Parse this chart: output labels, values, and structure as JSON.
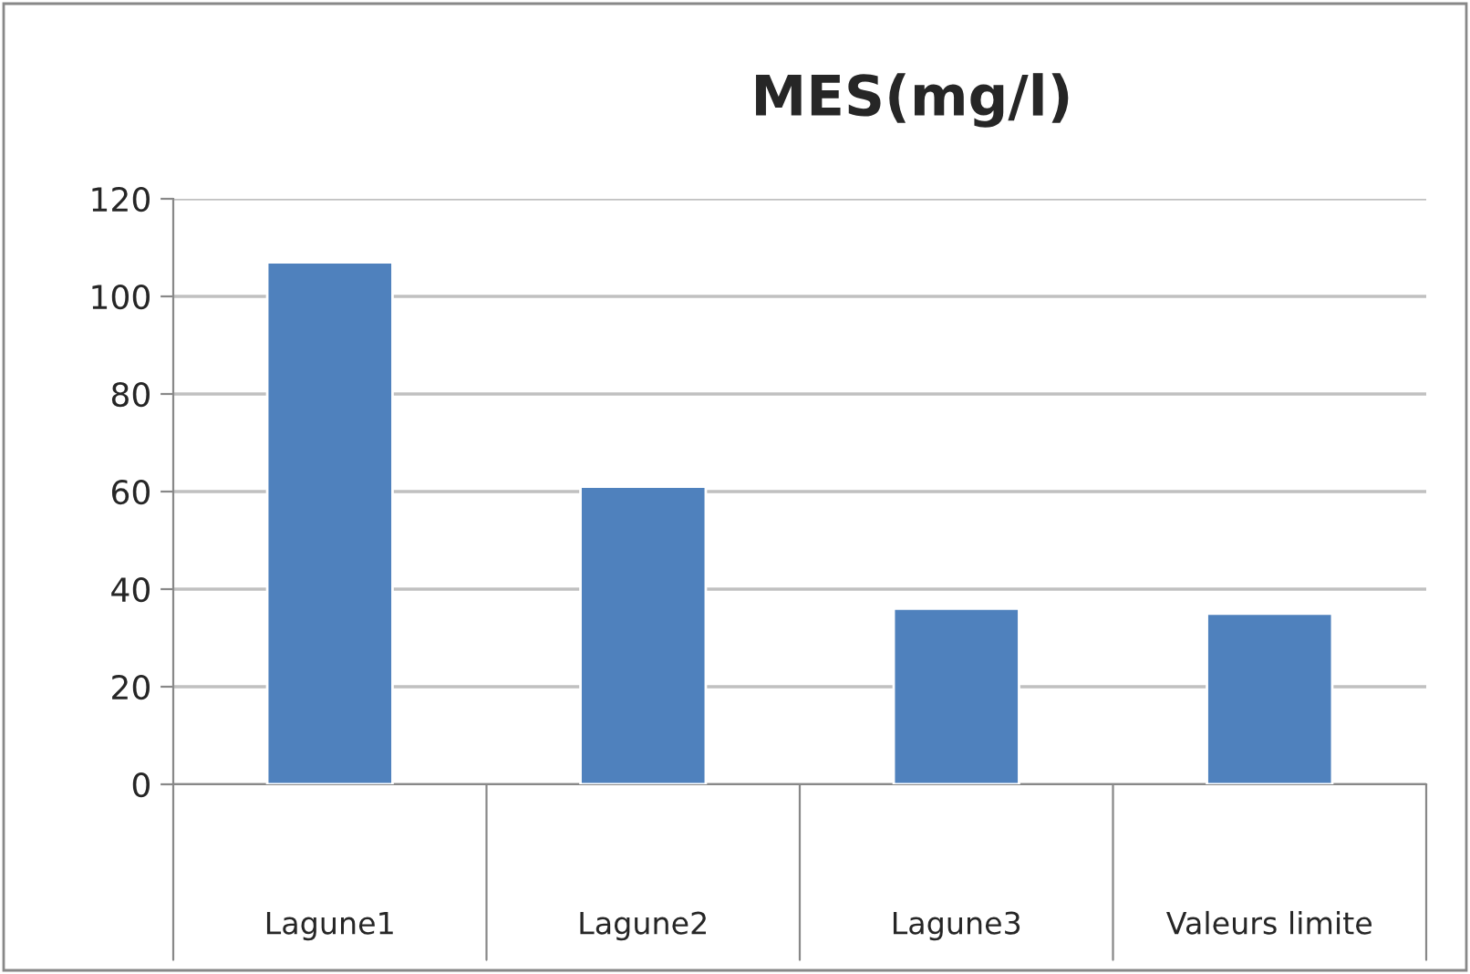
{
  "chart_data": {
    "type": "bar",
    "title": "MES(mg/l)",
    "categories": [
      "Lagune1",
      "Lagune2",
      "Lagune3",
      "Valeurs limite"
    ],
    "values": [
      107,
      61,
      36,
      35
    ],
    "color": "#4f81bd",
    "ylim": [
      0,
      120
    ],
    "yticks": [
      0,
      20,
      40,
      60,
      80,
      100,
      120
    ],
    "grid": "y"
  }
}
